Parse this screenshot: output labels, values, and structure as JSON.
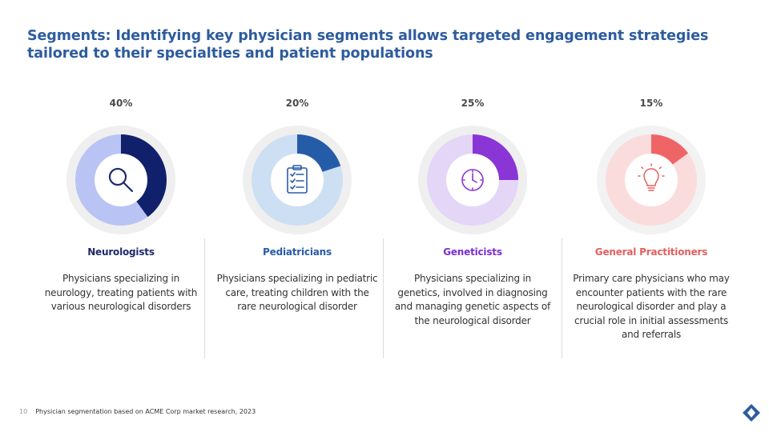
{
  "title": "Segments: Identifying key physician segments allows targeted engagement strategies tailored to their specialties and patient populations",
  "segments": [
    {
      "percent_label": "40%",
      "share": 0.4,
      "name": "Neurologists",
      "description": "Physicians specializing in neurology, treating patients with various neurological disorders",
      "icon": "magnifier-icon",
      "colors": {
        "title": "#1f2a6b",
        "slice": "#10206a",
        "ring": "#b9c4f5",
        "halo": "#efefef",
        "icon": "#1f2a6b"
      }
    },
    {
      "percent_label": "20%",
      "share": 0.2,
      "name": "Pediatricians",
      "description": "Physicians specializing in pediatric care, treating children with the rare neurological disorder",
      "icon": "clipboard-checklist-icon",
      "colors": {
        "title": "#2a5ca8",
        "slice": "#255ca8",
        "ring": "#cddff2",
        "halo": "#efefef",
        "icon": "#2a5ca8"
      }
    },
    {
      "percent_label": "25%",
      "share": 0.25,
      "name": "Geneticists",
      "description": "Physicians specializing in genetics, involved in diagnosing and managing genetic aspects of the neurological disorder",
      "icon": "clock-icon",
      "colors": {
        "title": "#7b2fd0",
        "slice": "#8a35d6",
        "ring": "#e4d6f7",
        "halo": "#efefef",
        "icon": "#8a35d6"
      }
    },
    {
      "percent_label": "15%",
      "share": 0.15,
      "name": "General Practitioners",
      "description": "Primary care physicians who may encounter patients with the rare neurological disorder and play a crucial role in initial assessments and referrals",
      "icon": "lightbulb-icon",
      "colors": {
        "title": "#e0605f",
        "slice": "#ef6566",
        "ring": "#fbdcdc",
        "halo": "#f2f2f2",
        "icon": "#e0605f"
      }
    }
  ],
  "footer": {
    "page_number": "10",
    "source": "Physician segmentation based on ACME Corp market research, 2023"
  },
  "logo": {
    "icon": "brand-logo-icon",
    "color": "#2d5c9e"
  }
}
